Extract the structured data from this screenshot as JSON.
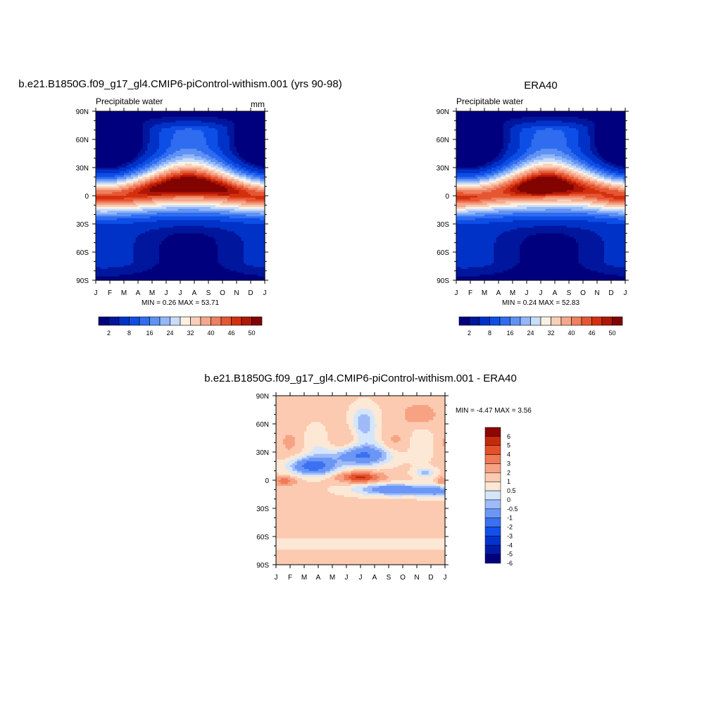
{
  "colors": {
    "pw_scale": [
      "#00007f",
      "#00169c",
      "#0032c8",
      "#0d4ee6",
      "#2f6cf0",
      "#5f92f4",
      "#93b7f8",
      "#c8dcfb",
      "#fbf1e2",
      "#f9cfb8",
      "#f4a88c",
      "#ef7f5f",
      "#e65632",
      "#d4300f",
      "#af1706",
      "#820400"
    ],
    "diff_scale": [
      "#00007f",
      "#001ba6",
      "#0034cc",
      "#1150ea",
      "#3a70f2",
      "#6c96f5",
      "#9ebaf8",
      "#d4e6fb",
      "#fde8d5",
      "#fbcab0",
      "#f6a283",
      "#f07a55",
      "#e3502a",
      "#c52b0b",
      "#8c0700"
    ]
  },
  "chart_data": [
    {
      "type": "heatmap",
      "panel": "model",
      "title": "b.e21.B1850G.f09_g17_gl4.CMIP6-piControl-withism.001 (yrs 90-98)",
      "left_label": "Precipitable water",
      "units": "mm",
      "x_ticklabels": [
        "J",
        "F",
        "M",
        "A",
        "M",
        "J",
        "J",
        "A",
        "S",
        "O",
        "N",
        "D",
        "J"
      ],
      "y_ticklabels": [
        "90N",
        "60N",
        "30N",
        "0",
        "30S",
        "60S",
        "90S"
      ],
      "ylim": [
        -90,
        90
      ],
      "min_max_text": "MIN =   0.26 MAX =  53.71",
      "min": 0.26,
      "max": 53.71,
      "colorbar_levels": [
        0,
        2,
        4,
        8,
        12,
        16,
        20,
        24,
        28,
        32,
        36,
        40,
        43,
        46,
        48,
        50,
        52
      ],
      "colorbar_ticklabels": [
        "2",
        "8",
        "16",
        "24",
        "32",
        "40",
        "46",
        "50"
      ]
    },
    {
      "type": "heatmap",
      "panel": "obs",
      "title": "ERA40",
      "left_label": "Precipitable water",
      "x_ticklabels": [
        "J",
        "F",
        "M",
        "A",
        "M",
        "J",
        "J",
        "A",
        "S",
        "O",
        "N",
        "D",
        "J"
      ],
      "y_ticklabels": [
        "90N",
        "60N",
        "30N",
        "0",
        "30S",
        "60S",
        "90S"
      ],
      "ylim": [
        -90,
        90
      ],
      "min_max_text": "MIN =   0.24 MAX =  52.83",
      "min": 0.24,
      "max": 52.83,
      "colorbar_levels": [
        0,
        2,
        4,
        8,
        12,
        16,
        20,
        24,
        28,
        32,
        36,
        40,
        43,
        46,
        48,
        50,
        52
      ],
      "colorbar_ticklabels": [
        "2",
        "8",
        "16",
        "24",
        "32",
        "40",
        "46",
        "50"
      ]
    },
    {
      "type": "heatmap",
      "panel": "difference",
      "title": "b.e21.B1850G.f09_g17_gl4.CMIP6-piControl-withism.001 - ERA40",
      "x_ticklabels": [
        "J",
        "F",
        "M",
        "A",
        "M",
        "J",
        "J",
        "A",
        "S",
        "O",
        "N",
        "D",
        "J"
      ],
      "y_ticklabels": [
        "90N",
        "60N",
        "30N",
        "0",
        "30S",
        "60S",
        "90S"
      ],
      "ylim": [
        -90,
        90
      ],
      "min_max_text": "MIN =  -4.47 MAX =   3.56",
      "min": -4.47,
      "max": 3.56,
      "colorbar_ticklabels": [
        "6",
        "5",
        "4",
        "3",
        "2",
        "1",
        "0.5",
        "0",
        "-0.5",
        "-1",
        "-2",
        "-3",
        "-4",
        "-5",
        "-6"
      ]
    }
  ]
}
